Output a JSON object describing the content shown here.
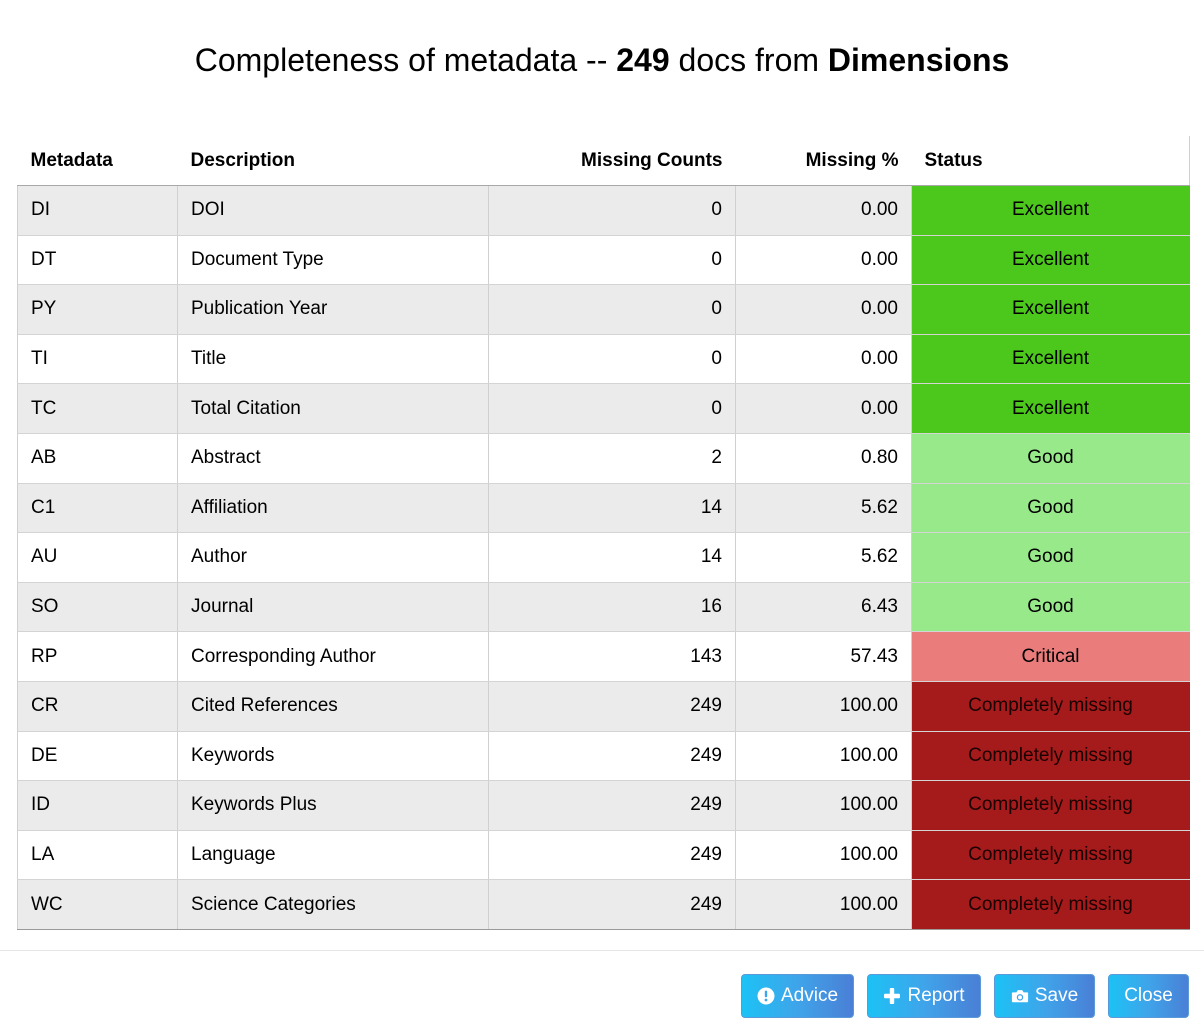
{
  "title": {
    "prefix": "Completeness of metadata -- ",
    "count": "249",
    "middle": " docs from ",
    "source": "Dimensions"
  },
  "table": {
    "headers": {
      "metadata": "Metadata",
      "description": "Description",
      "missing_counts": "Missing Counts",
      "missing_pct": "Missing %",
      "status": "Status"
    },
    "rows": [
      {
        "metadata": "DI",
        "description": "DOI",
        "count": "0",
        "pct": "0.00",
        "status": "Excellent",
        "level": "excellent"
      },
      {
        "metadata": "DT",
        "description": "Document Type",
        "count": "0",
        "pct": "0.00",
        "status": "Excellent",
        "level": "excellent"
      },
      {
        "metadata": "PY",
        "description": "Publication Year",
        "count": "0",
        "pct": "0.00",
        "status": "Excellent",
        "level": "excellent"
      },
      {
        "metadata": "TI",
        "description": "Title",
        "count": "0",
        "pct": "0.00",
        "status": "Excellent",
        "level": "excellent"
      },
      {
        "metadata": "TC",
        "description": "Total Citation",
        "count": "0",
        "pct": "0.00",
        "status": "Excellent",
        "level": "excellent"
      },
      {
        "metadata": "AB",
        "description": "Abstract",
        "count": "2",
        "pct": "0.80",
        "status": "Good",
        "level": "good"
      },
      {
        "metadata": "C1",
        "description": "Affiliation",
        "count": "14",
        "pct": "5.62",
        "status": "Good",
        "level": "good"
      },
      {
        "metadata": "AU",
        "description": "Author",
        "count": "14",
        "pct": "5.62",
        "status": "Good",
        "level": "good"
      },
      {
        "metadata": "SO",
        "description": "Journal",
        "count": "16",
        "pct": "6.43",
        "status": "Good",
        "level": "good"
      },
      {
        "metadata": "RP",
        "description": "Corresponding Author",
        "count": "143",
        "pct": "57.43",
        "status": "Critical",
        "level": "critical"
      },
      {
        "metadata": "CR",
        "description": "Cited References",
        "count": "249",
        "pct": "100.00",
        "status": "Completely missing",
        "level": "missing"
      },
      {
        "metadata": "DE",
        "description": "Keywords",
        "count": "249",
        "pct": "100.00",
        "status": "Completely missing",
        "level": "missing"
      },
      {
        "metadata": "ID",
        "description": "Keywords Plus",
        "count": "249",
        "pct": "100.00",
        "status": "Completely missing",
        "level": "missing"
      },
      {
        "metadata": "LA",
        "description": "Language",
        "count": "249",
        "pct": "100.00",
        "status": "Completely missing",
        "level": "missing"
      },
      {
        "metadata": "WC",
        "description": "Science Categories",
        "count": "249",
        "pct": "100.00",
        "status": "Completely missing",
        "level": "missing"
      }
    ]
  },
  "status_colors": {
    "excellent": "#4cc71b",
    "good": "#98e98a",
    "critical": "#ea7c7c",
    "missing": "#a51b1b"
  },
  "buttons": {
    "advice": {
      "label": "Advice",
      "icon": "exclamation-circle-icon"
    },
    "report": {
      "label": "Report",
      "icon": "plus-icon"
    },
    "save": {
      "label": "Save",
      "icon": "camera-icon"
    },
    "close": {
      "label": "Close"
    }
  }
}
